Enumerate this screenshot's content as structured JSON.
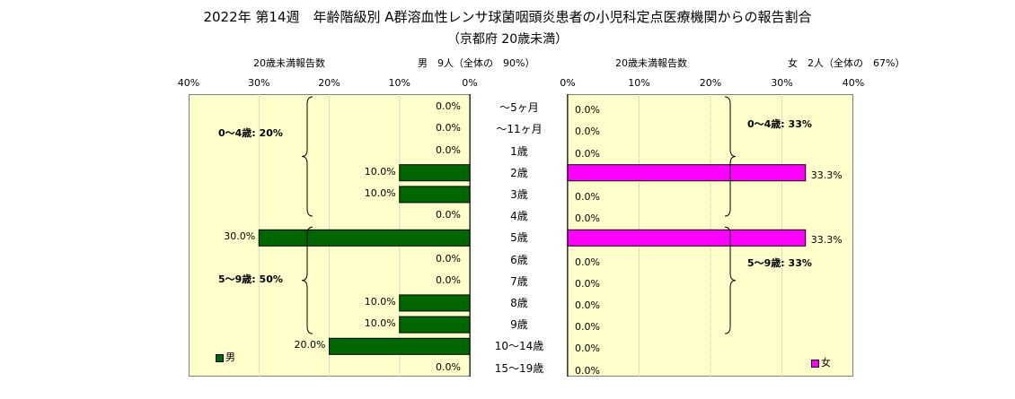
{
  "title": "2022年 第14週　年齢階級別 A群溶血性レンサ球菌咽頭炎患者の小児科定点医療機関からの報告割合",
  "subtitle": "（京都府 20歳未満）",
  "colors": {
    "male": "#006600",
    "female": "#FF00FF",
    "panel_bg": "#FFFFCC",
    "grid": "#C0C0C0"
  },
  "chart_data": {
    "type": "bar",
    "orientation": "horizontal-butterfly",
    "categories": [
      "〜5ヶ月",
      "〜11ヶ月",
      "1歳",
      "2歳",
      "3歳",
      "4歳",
      "5歳",
      "6歳",
      "7歳",
      "8歳",
      "9歳",
      "10〜14歳",
      "15〜19歳"
    ],
    "xlim": [
      0,
      40
    ],
    "tick_labels": [
      "0%",
      "10%",
      "20%",
      "30%",
      "40%"
    ],
    "grid": true,
    "series": [
      {
        "name": "男",
        "header_count_label": "20歳未満報告数",
        "header_summary": "男　9人（全体の　90%）",
        "values": [
          0,
          0,
          0,
          10,
          10,
          0,
          30,
          0,
          0,
          10,
          10,
          20,
          0
        ],
        "data_labels": [
          "0.0%",
          "0.0%",
          "0.0%",
          "10.0%",
          "10.0%",
          "0.0%",
          "30.0%",
          "0.0%",
          "0.0%",
          "10.0%",
          "10.0%",
          "20.0%",
          "0.0%"
        ],
        "annotations": [
          "0〜4歳: 20%",
          "5〜9歳: 50%"
        ],
        "legend": "男"
      },
      {
        "name": "女",
        "header_count_label": "20歳未満報告数",
        "header_summary": "女　2人（全体の　67%）",
        "values": [
          0,
          0,
          0,
          33.3,
          0,
          0,
          33.3,
          0,
          0,
          0,
          0,
          0,
          0
        ],
        "data_labels": [
          "0.0%",
          "0.0%",
          "0.0%",
          "33.3%",
          "0.0%",
          "0.0%",
          "33.3%",
          "0.0%",
          "0.0%",
          "0.0%",
          "0.0%",
          "0.0%",
          "0.0%"
        ],
        "annotations": [
          "0〜4歳: 33%",
          "5〜9歳: 33%"
        ],
        "legend": "女"
      }
    ]
  }
}
